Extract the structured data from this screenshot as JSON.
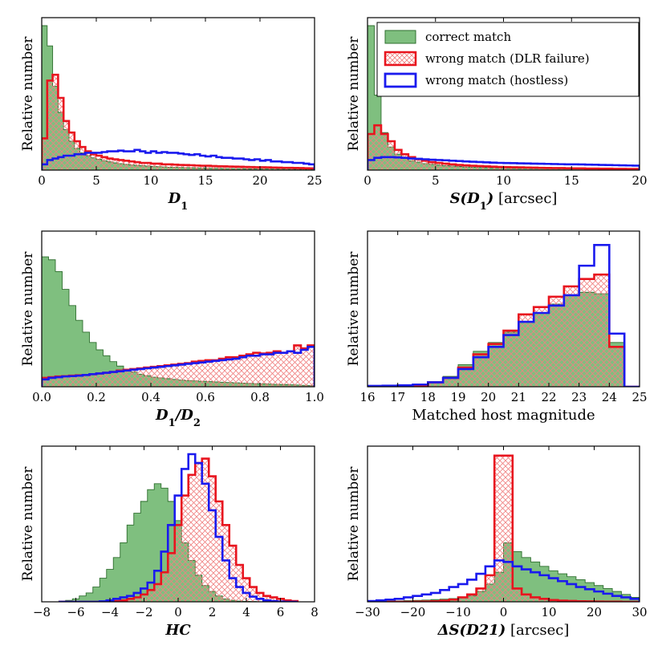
{
  "colors": {
    "correct_fill": "#7fbf7f",
    "correct_edge": "#2f6f2f",
    "dlr_edge": "#e8141e",
    "dlr_hatch": "#f08080",
    "hostless_edge": "#1a1aee"
  },
  "legend": {
    "correct": "correct match",
    "dlr": "wrong match (DLR failure)",
    "hostless": "wrong match (hostless)"
  },
  "chart_data": [
    {
      "type": "histogram",
      "panel": "top-left",
      "xlabel": "D1",
      "xlabel_main": "D",
      "xlabel_sub": "1",
      "ylabel": "Relative number",
      "xlim": [
        0,
        25
      ],
      "xticks": [
        0,
        5,
        10,
        15,
        20,
        25
      ],
      "ylim": [
        0,
        1.0
      ],
      "legend": false,
      "bin_start": 0,
      "bin_width": 0.5,
      "series": [
        {
          "name": "correct match",
          "values": [
            1.0,
            0.86,
            0.58,
            0.4,
            0.28,
            0.2,
            0.15,
            0.12,
            0.1,
            0.085,
            0.075,
            0.065,
            0.057,
            0.05,
            0.045,
            0.04,
            0.036,
            0.033,
            0.03,
            0.028,
            0.026,
            0.024,
            0.022,
            0.02,
            0.019,
            0.018,
            0.017,
            0.016,
            0.015,
            0.014,
            0.013,
            0.012,
            0.012,
            0.011,
            0.011,
            0.01,
            0.01,
            0.009,
            0.009,
            0.008,
            0.008,
            0.008,
            0.007,
            0.007,
            0.007,
            0.006,
            0.006,
            0.006,
            0.005,
            0.005
          ]
        },
        {
          "name": "wrong match (DLR failure)",
          "values": [
            0.22,
            0.62,
            0.66,
            0.5,
            0.34,
            0.26,
            0.2,
            0.16,
            0.13,
            0.11,
            0.1,
            0.09,
            0.08,
            0.075,
            0.07,
            0.065,
            0.06,
            0.055,
            0.05,
            0.05,
            0.045,
            0.045,
            0.04,
            0.04,
            0.038,
            0.036,
            0.035,
            0.034,
            0.032,
            0.03,
            0.03,
            0.028,
            0.027,
            0.026,
            0.025,
            0.024,
            0.023,
            0.022,
            0.021,
            0.02,
            0.02,
            0.019,
            0.018,
            0.017,
            0.016,
            0.016,
            0.015,
            0.014,
            0.013,
            0.012
          ]
        },
        {
          "name": "wrong match (hostless)",
          "values": [
            0.04,
            0.07,
            0.08,
            0.09,
            0.1,
            0.1,
            0.11,
            0.11,
            0.12,
            0.12,
            0.12,
            0.125,
            0.13,
            0.13,
            0.135,
            0.13,
            0.13,
            0.14,
            0.13,
            0.12,
            0.13,
            0.12,
            0.125,
            0.12,
            0.12,
            0.115,
            0.11,
            0.105,
            0.11,
            0.1,
            0.095,
            0.1,
            0.09,
            0.085,
            0.085,
            0.08,
            0.08,
            0.075,
            0.07,
            0.075,
            0.065,
            0.07,
            0.06,
            0.06,
            0.055,
            0.055,
            0.05,
            0.05,
            0.045,
            0.04
          ]
        }
      ]
    },
    {
      "type": "histogram",
      "panel": "top-right",
      "xlabel": "S(D1) [arcsec]",
      "xlabel_main": "S(D",
      "xlabel_sub": "1",
      "xlabel_tail": ")",
      "xlabel_unit": " [arcsec]",
      "ylabel": "Relative number",
      "xlim": [
        0,
        20
      ],
      "xticks": [
        0,
        5,
        10,
        15,
        20
      ],
      "ylim": [
        0,
        1.0
      ],
      "legend": true,
      "bin_start": 0,
      "bin_width": 0.5,
      "series": [
        {
          "name": "correct match",
          "values": [
            1.0,
            0.52,
            0.26,
            0.16,
            0.11,
            0.08,
            0.065,
            0.055,
            0.045,
            0.04,
            0.035,
            0.03,
            0.028,
            0.025,
            0.022,
            0.02,
            0.018,
            0.017,
            0.016,
            0.015,
            0.014,
            0.013,
            0.012,
            0.012,
            0.011,
            0.011,
            0.01,
            0.01,
            0.009,
            0.009,
            0.009,
            0.008,
            0.008,
            0.008,
            0.007,
            0.007,
            0.007,
            0.006,
            0.006,
            0.006
          ]
        },
        {
          "name": "wrong match (DLR failure)",
          "values": [
            0.25,
            0.31,
            0.25,
            0.2,
            0.14,
            0.11,
            0.09,
            0.075,
            0.065,
            0.055,
            0.05,
            0.045,
            0.04,
            0.036,
            0.033,
            0.03,
            0.028,
            0.026,
            0.024,
            0.022,
            0.021,
            0.02,
            0.019,
            0.018,
            0.017,
            0.016,
            0.015,
            0.014,
            0.014,
            0.013,
            0.012,
            0.012,
            0.011,
            0.011,
            0.01,
            0.01,
            0.009,
            0.009,
            0.008,
            0.008
          ]
        },
        {
          "name": "wrong match (hostless)",
          "values": [
            0.07,
            0.085,
            0.09,
            0.09,
            0.088,
            0.085,
            0.08,
            0.078,
            0.075,
            0.072,
            0.07,
            0.068,
            0.065,
            0.063,
            0.06,
            0.058,
            0.056,
            0.054,
            0.052,
            0.05,
            0.049,
            0.048,
            0.047,
            0.046,
            0.045,
            0.044,
            0.043,
            0.042,
            0.041,
            0.04,
            0.04,
            0.039,
            0.038,
            0.037,
            0.036,
            0.035,
            0.034,
            0.033,
            0.032,
            0.031
          ]
        }
      ]
    },
    {
      "type": "histogram",
      "panel": "middle-left",
      "xlabel": "D1/D2",
      "xlabel_main": "D",
      "xlabel_sub": "1",
      "xlabel_mid": "/D",
      "xlabel_sub2": "2",
      "ylabel": "Relative number",
      "xlim": [
        0,
        1.0
      ],
      "xticks": [
        0.0,
        0.2,
        0.4,
        0.6,
        0.8,
        1.0
      ],
      "ylim": [
        0,
        1.0
      ],
      "legend": false,
      "bin_start": 0,
      "bin_width": 0.025,
      "series": [
        {
          "name": "correct match",
          "values": [
            0.88,
            0.86,
            0.78,
            0.66,
            0.55,
            0.45,
            0.37,
            0.3,
            0.25,
            0.21,
            0.17,
            0.14,
            0.12,
            0.1,
            0.085,
            0.075,
            0.065,
            0.06,
            0.055,
            0.05,
            0.045,
            0.042,
            0.04,
            0.037,
            0.035,
            0.033,
            0.031,
            0.029,
            0.027,
            0.025,
            0.023,
            0.021,
            0.02,
            0.018,
            0.016,
            0.015,
            0.013,
            0.012,
            0.01,
            0.008
          ]
        },
        {
          "name": "wrong match (DLR failure)",
          "values": [
            0.06,
            0.065,
            0.07,
            0.072,
            0.075,
            0.078,
            0.08,
            0.085,
            0.09,
            0.095,
            0.1,
            0.11,
            0.115,
            0.12,
            0.125,
            0.13,
            0.135,
            0.14,
            0.145,
            0.15,
            0.155,
            0.16,
            0.17,
            0.175,
            0.18,
            0.18,
            0.19,
            0.2,
            0.2,
            0.21,
            0.22,
            0.23,
            0.225,
            0.23,
            0.24,
            0.23,
            0.24,
            0.28,
            0.26,
            0.28
          ]
        },
        {
          "name": "wrong match (hostless)",
          "values": [
            0.05,
            0.06,
            0.065,
            0.07,
            0.072,
            0.075,
            0.08,
            0.085,
            0.09,
            0.095,
            0.1,
            0.105,
            0.11,
            0.115,
            0.12,
            0.125,
            0.13,
            0.135,
            0.14,
            0.145,
            0.15,
            0.155,
            0.16,
            0.165,
            0.17,
            0.175,
            0.18,
            0.185,
            0.19,
            0.2,
            0.21,
            0.21,
            0.22,
            0.22,
            0.23,
            0.23,
            0.24,
            0.23,
            0.25,
            0.27
          ]
        }
      ]
    },
    {
      "type": "histogram",
      "panel": "middle-right",
      "xlabel": "Matched host magnitude",
      "ylabel": "Relative number",
      "xlim": [
        16,
        25
      ],
      "xticks": [
        16,
        17,
        18,
        19,
        20,
        21,
        22,
        23,
        24,
        25
      ],
      "ylim": [
        0,
        1.0
      ],
      "legend": false,
      "bin_start": 16,
      "bin_width": 0.5,
      "series": [
        {
          "name": "correct match",
          "values": [
            0.0,
            0.005,
            0.01,
            0.015,
            0.035,
            0.07,
            0.15,
            0.24,
            0.3,
            0.37,
            0.44,
            0.5,
            0.56,
            0.62,
            0.64,
            0.63,
            0.3,
            0.0
          ]
        },
        {
          "name": "wrong match (DLR failure)",
          "values": [
            0.0,
            0.004,
            0.008,
            0.01,
            0.03,
            0.06,
            0.13,
            0.22,
            0.29,
            0.38,
            0.49,
            0.54,
            0.61,
            0.68,
            0.73,
            0.76,
            0.27,
            0.0
          ]
        },
        {
          "name": "wrong match (hostless)",
          "values": [
            0.006,
            0.007,
            0.01,
            0.015,
            0.03,
            0.06,
            0.12,
            0.2,
            0.27,
            0.35,
            0.44,
            0.5,
            0.55,
            0.62,
            0.82,
            0.96,
            0.36,
            0.0
          ]
        }
      ]
    },
    {
      "type": "histogram",
      "panel": "bottom-left",
      "xlabel": "HC",
      "xlabel_main": "HC",
      "ylabel": "Relative number",
      "xlim": [
        -8,
        8
      ],
      "xticks": [
        -8,
        -6,
        -4,
        -2,
        0,
        2,
        4,
        6,
        8
      ],
      "ylim": [
        0,
        1.0
      ],
      "legend": false,
      "bin_start": -7,
      "bin_width": 0.4,
      "series": [
        {
          "name": "correct match",
          "values": [
            0.005,
            0.01,
            0.02,
            0.04,
            0.06,
            0.1,
            0.16,
            0.22,
            0.3,
            0.4,
            0.52,
            0.6,
            0.68,
            0.76,
            0.8,
            0.77,
            0.68,
            0.55,
            0.4,
            0.28,
            0.18,
            0.11,
            0.07,
            0.04,
            0.02,
            0.01,
            0.005,
            0.003,
            0.002,
            0.001,
            0.001,
            0.0,
            0.0,
            0.0,
            0.0
          ]
        },
        {
          "name": "wrong match (DLR failure)",
          "values": [
            0.0,
            0.0,
            0.0,
            0.0,
            0.0,
            0.0,
            0.0,
            0.0,
            0.005,
            0.01,
            0.02,
            0.03,
            0.05,
            0.08,
            0.12,
            0.2,
            0.33,
            0.52,
            0.72,
            0.86,
            0.94,
            0.97,
            0.85,
            0.68,
            0.52,
            0.38,
            0.25,
            0.16,
            0.1,
            0.06,
            0.04,
            0.03,
            0.02,
            0.01,
            0.005
          ]
        },
        {
          "name": "wrong match (hostless)",
          "values": [
            0.0,
            0.0,
            0.0,
            0.0,
            0.0,
            0.0,
            0.003,
            0.01,
            0.02,
            0.03,
            0.04,
            0.06,
            0.09,
            0.13,
            0.21,
            0.34,
            0.52,
            0.72,
            0.9,
            1.0,
            0.94,
            0.8,
            0.62,
            0.44,
            0.28,
            0.16,
            0.1,
            0.06,
            0.035,
            0.02,
            0.01,
            0.005,
            0.002,
            0.0,
            0.0
          ]
        }
      ]
    },
    {
      "type": "histogram",
      "panel": "bottom-right",
      "xlabel": "ΔS(D21) [arcsec]",
      "xlabel_main": "ΔS(D21)",
      "xlabel_unit": " [arcsec]",
      "ylabel": "Relative number",
      "xlim": [
        -30,
        30
      ],
      "xticks": [
        -30,
        -20,
        -10,
        0,
        10,
        20,
        30
      ],
      "ylim": [
        0,
        1.0
      ],
      "legend": false,
      "bin_start": -30,
      "bin_width": 2,
      "series": [
        {
          "name": "correct match",
          "values": [
            0.002,
            0.004,
            0.005,
            0.006,
            0.008,
            0.01,
            0.012,
            0.015,
            0.018,
            0.022,
            0.03,
            0.04,
            0.07,
            0.12,
            0.2,
            0.4,
            0.34,
            0.3,
            0.27,
            0.24,
            0.21,
            0.19,
            0.17,
            0.15,
            0.13,
            0.11,
            0.09,
            0.07,
            0.05,
            0.03
          ]
        },
        {
          "name": "wrong match (DLR failure)",
          "values": [
            0.0,
            0.0,
            0.0,
            0.0,
            0.0,
            0.001,
            0.002,
            0.004,
            0.008,
            0.015,
            0.03,
            0.05,
            0.09,
            0.18,
            0.99,
            0.99,
            0.09,
            0.05,
            0.03,
            0.02,
            0.012,
            0.008,
            0.006,
            0.004,
            0.003,
            0.002,
            0.001,
            0.001,
            0.0,
            0.0
          ]
        },
        {
          "name": "wrong match (hostless)",
          "values": [
            0.005,
            0.01,
            0.015,
            0.02,
            0.03,
            0.04,
            0.05,
            0.06,
            0.08,
            0.1,
            0.12,
            0.15,
            0.19,
            0.24,
            0.28,
            0.27,
            0.24,
            0.22,
            0.2,
            0.18,
            0.16,
            0.14,
            0.12,
            0.1,
            0.085,
            0.07,
            0.055,
            0.04,
            0.03,
            0.02
          ]
        }
      ]
    }
  ]
}
